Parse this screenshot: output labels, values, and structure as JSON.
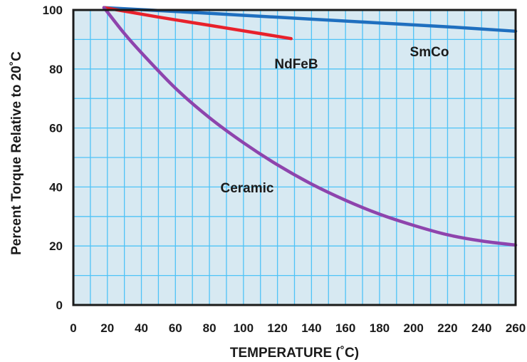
{
  "chart_data": {
    "type": "line",
    "xlabel": "TEMPERATURE (˚C)",
    "ylabel": "Percent Torque Relative to 20˚C",
    "xlim": [
      0,
      260
    ],
    "ylim": [
      0,
      100
    ],
    "x_ticks": [
      0,
      20,
      40,
      60,
      80,
      100,
      120,
      140,
      160,
      180,
      200,
      220,
      240,
      260
    ],
    "y_ticks": [
      0,
      20,
      40,
      60,
      80,
      100
    ],
    "grid": true,
    "background_color": "#d7e9f2",
    "grid_color": "#4fc3f7",
    "series": [
      {
        "name": "SmCo",
        "color": "#1f6fbf",
        "x": [
          18,
          60,
          100,
          140,
          180,
          220,
          260
        ],
        "y": [
          100.8,
          99.5,
          98.2,
          96.9,
          95.6,
          94.3,
          92.8
        ]
      },
      {
        "name": "NdFeB",
        "color": "#e8212b",
        "x": [
          18,
          50,
          80,
          110,
          128
        ],
        "y": [
          100.8,
          97.6,
          94.8,
          92.0,
          90.3
        ]
      },
      {
        "name": "Ceramic",
        "color": "#8e44ad",
        "x": [
          18,
          30,
          40,
          60,
          80,
          100,
          120,
          140,
          160,
          180,
          200,
          220,
          240,
          260
        ],
        "y": [
          100.8,
          92.0,
          85.5,
          73.5,
          63.5,
          55.0,
          47.5,
          41.0,
          35.5,
          30.8,
          27.0,
          23.8,
          21.7,
          20.3
        ]
      }
    ]
  }
}
